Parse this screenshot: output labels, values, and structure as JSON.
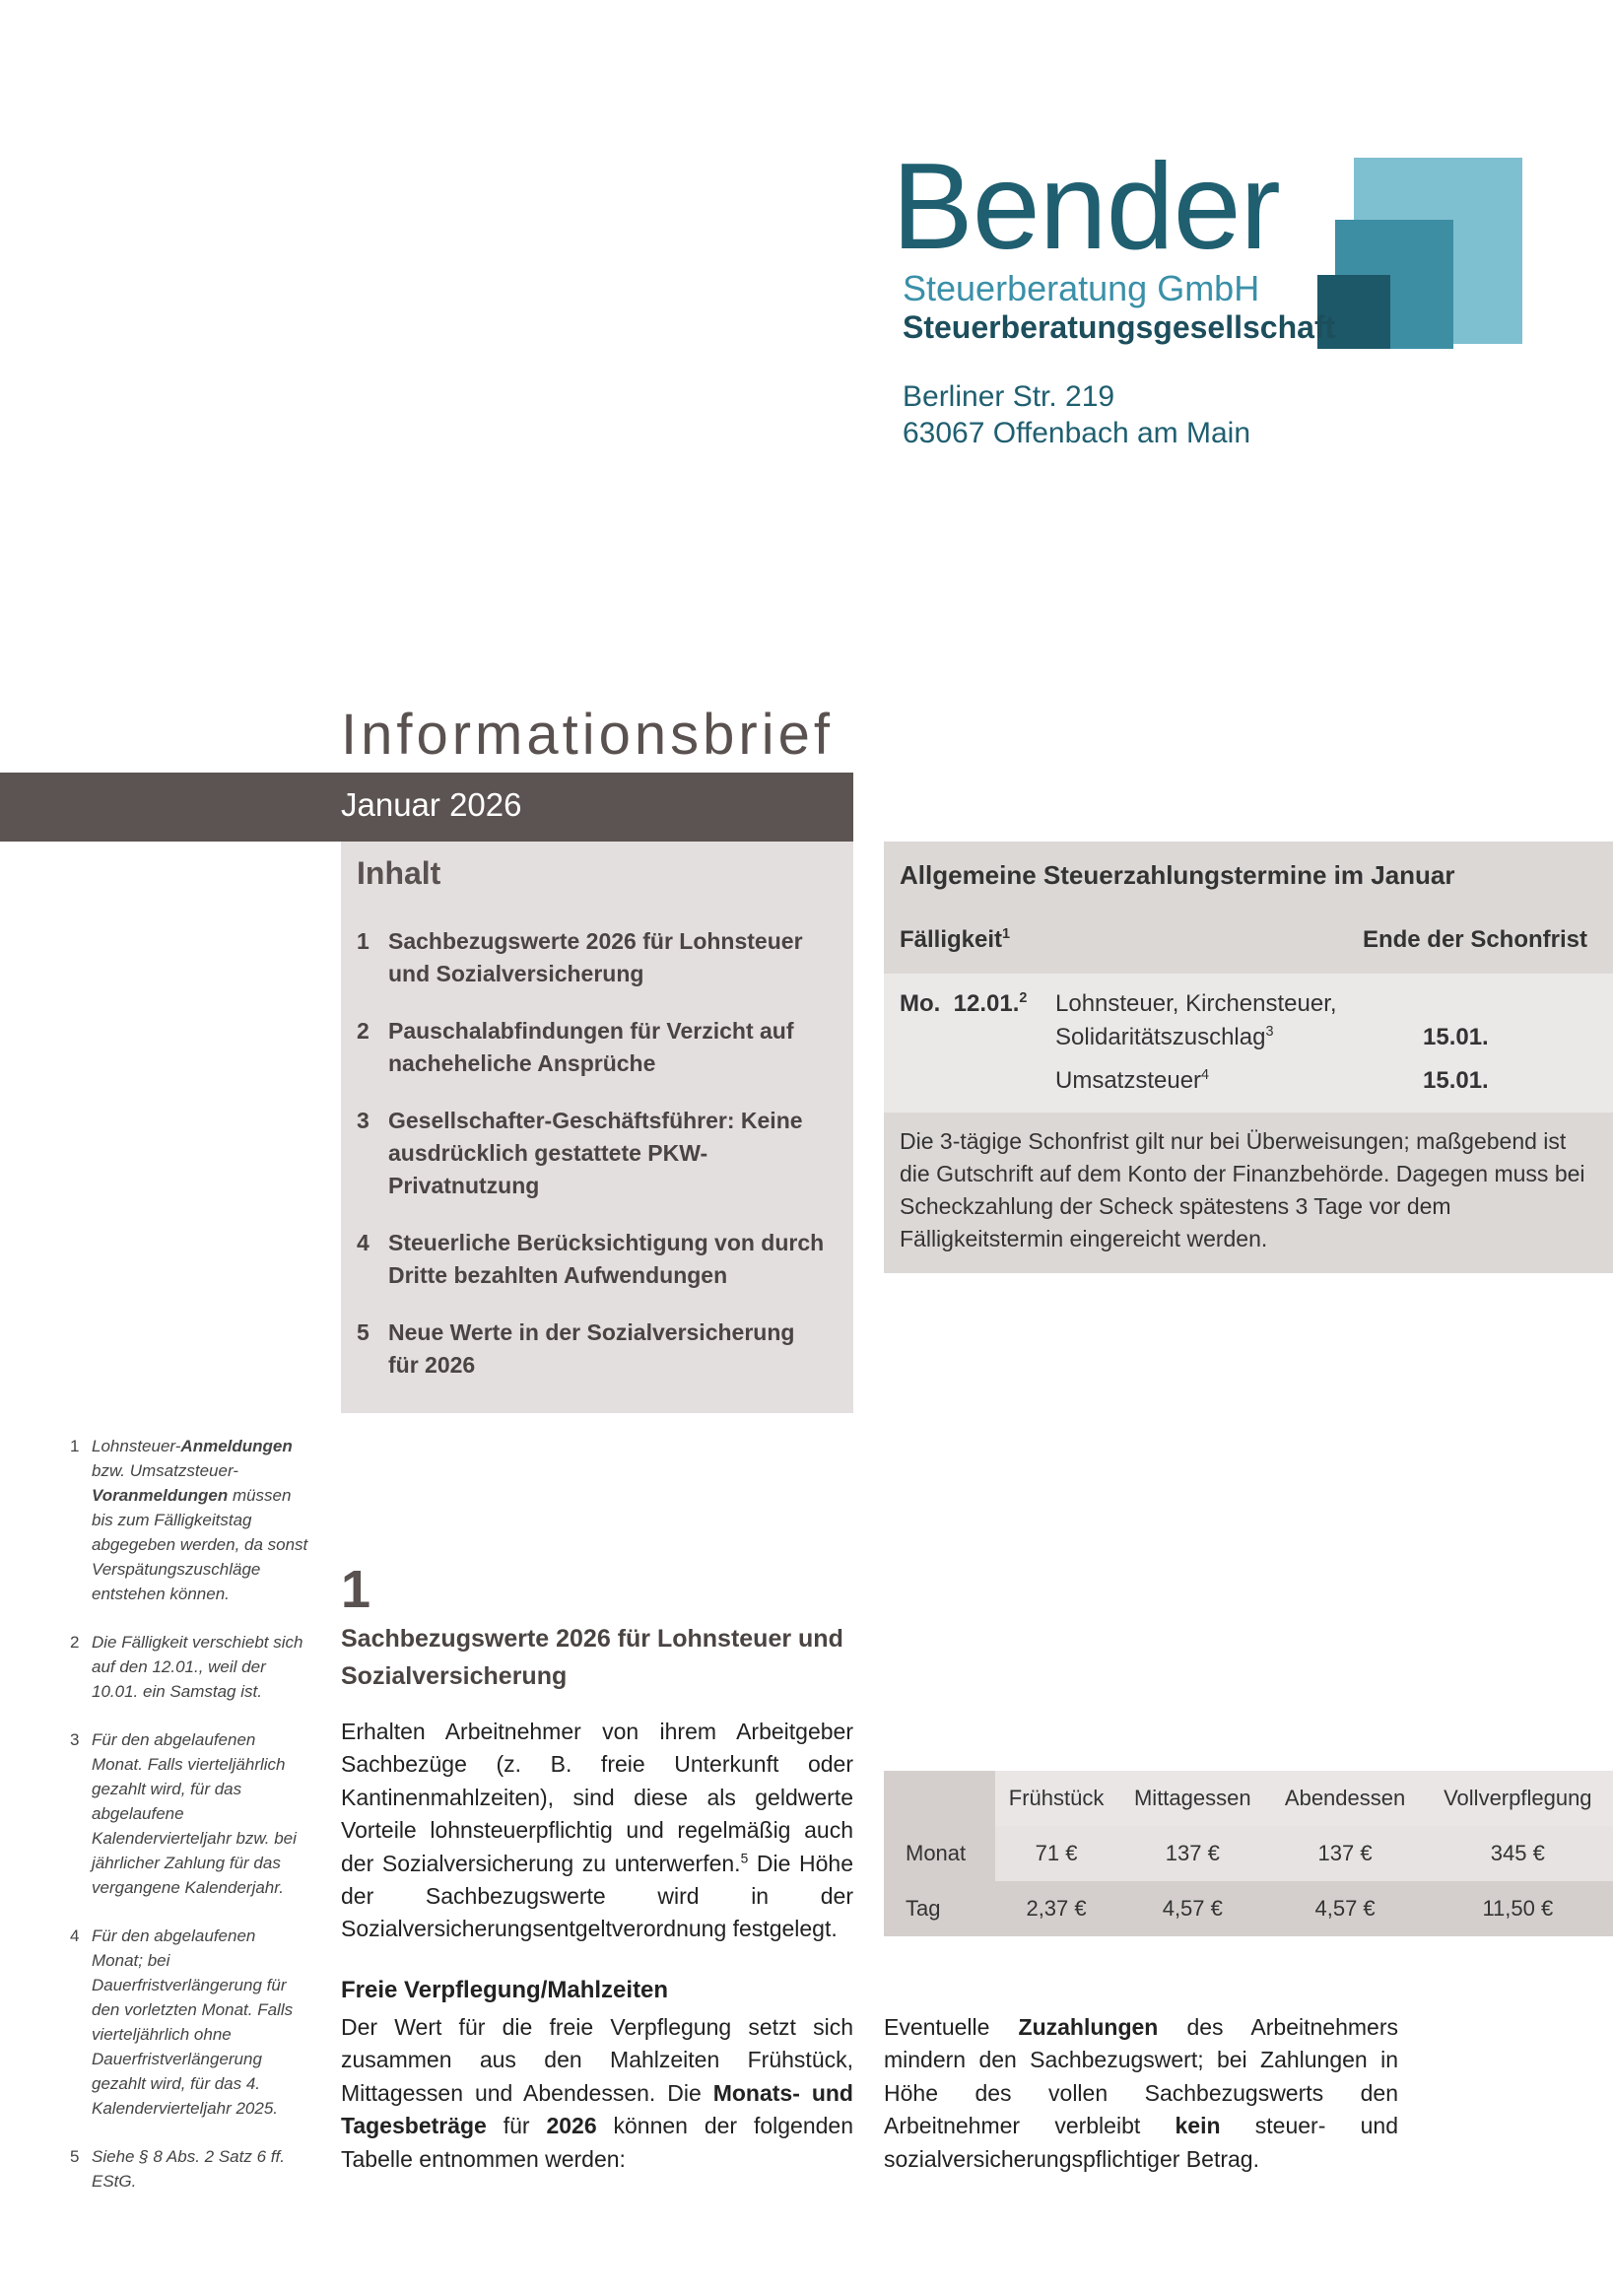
{
  "logo": {
    "name": "Bender",
    "line1": "Steuerberatung GmbH",
    "line2": "Steuerberatungsgesellschaft"
  },
  "address": {
    "street": "Berliner Str. 219",
    "city": "63067 Offenbach am Main"
  },
  "header": {
    "title": "Informationsbrief",
    "issue": "Januar 2026"
  },
  "contents": {
    "heading": "Inhalt",
    "items": [
      {
        "number": 1,
        "text": "Sachbezugswerte 2026 für Lohnsteuer und Sozialversicherung"
      },
      {
        "number": 2,
        "text": "Pauschalabfindungen für Verzicht auf nacheheliche Ansprüche"
      },
      {
        "number": 3,
        "text": "Gesellschafter-Geschäftsführer: Keine ausdrücklich gestattete PKW-Privatnutzung"
      },
      {
        "number": 4,
        "text": "Steuerliche Berücksichtigung von durch Dritte bezahlten Aufwendungen"
      },
      {
        "number": 5,
        "text": "Neue Werte in der Sozialversicherung für 2026"
      }
    ]
  },
  "deadlines": {
    "title": "Allgemeine Steuerzahlungstermine im Januar",
    "col_due": "Fälligkeit",
    "col_due_note": "1",
    "col_end": "Ende der Schonfrist",
    "weekday": "Mo.",
    "date": "12.01.",
    "date_note": "2",
    "taxes": [
      {
        "name": "Lohnsteuer, Kirchensteuer,",
        "name2": "Solidaritätszuschlag",
        "note": "3",
        "end": "15.01."
      },
      {
        "name": "Umsatzsteuer",
        "note": "4",
        "end": "15.01."
      }
    ],
    "note": "Die 3-tägige Schonfrist gilt nur bei Überweisungen; maßgebend ist die Gutschrift auf dem Konto der Finanzbehörde. Dagegen muss bei Scheckzahlung der Scheck spätestens 3 Tage vor dem Fälligkeitstermin eingereicht werden."
  },
  "footnotes": [
    {
      "number": 1,
      "segments": [
        {
          "text": "Lohnsteuer-"
        },
        {
          "text": "Anmeldungen",
          "style": "bold"
        },
        {
          "text": " bzw. Umsatzsteuer-"
        },
        {
          "text": "Voranmeldungen",
          "style": "bold"
        },
        {
          "text": " müssen bis zum Fälligkeitstag abgegeben werden, da sonst Verspätungszuschläge entstehen können."
        }
      ]
    },
    {
      "number": 2,
      "segments": [
        {
          "text": "Die Fälligkeit verschiebt sich auf den 12.01., weil der 10.01. ein Samstag ist."
        }
      ]
    },
    {
      "number": 3,
      "segments": [
        {
          "text": "Für den abgelaufenen Monat. Falls vierteljährlich gezahlt wird, für das abgelaufene Kalendervierteljahr bzw. bei jährlicher Zahlung für das vergangene Kalenderjahr."
        }
      ]
    },
    {
      "number": 4,
      "segments": [
        {
          "text": "Für den abgelaufenen Monat; bei Dauerfristverlängerung für den vorletzten Monat. Falls vierteljährlich ohne Dauerfristverlängerung gezahlt wird, für das 4. Kalendervierteljahr 2025."
        }
      ]
    },
    {
      "number": 5,
      "segments": [
        {
          "text": "Siehe § 8 Abs. 2 Satz 6 ff. EStG."
        }
      ]
    }
  ],
  "section": {
    "number": 1,
    "title": "Sachbezugswerte 2026 für Lohnsteuer und Sozialversicherung",
    "intro": [
      {
        "text": "Erhalten Arbeitnehmer von ihrem Arbeitgeber Sachbezüge (z. B. freie Unterkunft oder Kantinenmahlzeiten), sind diese als geldwerte Vorteile lohnsteuerpflichtig und regelmäßig auch der Sozialversicherung zu unterwerfen."
      },
      {
        "text": "5",
        "style": "sup"
      },
      {
        "text": " Die Höhe der Sachbezugswerte wird in der Sozialversicherungsentgeltverordnung festgelegt."
      }
    ],
    "subheading": "Freie Verpflegung/Mahlzeiten",
    "paragraph": [
      {
        "text": "Der Wert für die freie Verpflegung setzt sich zusammen aus den Mahlzeiten Frühstück, Mittagessen und Abendessen. Die "
      },
      {
        "text": "Monats- und Tagesbeträge",
        "style": "bold"
      },
      {
        "text": " für "
      },
      {
        "text": "2026",
        "style": "bold"
      },
      {
        "text": " können der folgenden Tabelle entnommen werden:"
      }
    ]
  },
  "table": {
    "columns": [
      "Frühstück",
      "Mittagessen",
      "Abendessen",
      "Vollverpflegung"
    ],
    "rows": [
      {
        "label": "Monat",
        "cells": [
          "71 €",
          "137 €",
          "137 €",
          "345 €"
        ]
      },
      {
        "label": "Tag",
        "cells": [
          "2,37 €",
          "4,57 €",
          "4,57 €",
          "11,50 €"
        ]
      }
    ]
  },
  "closing": [
    {
      "text": "Eventuelle "
    },
    {
      "text": "Zuzahlungen",
      "style": "bold"
    },
    {
      "text": " des Arbeitnehmers mindern den Sachbezugswert; bei Zahlungen in Höhe des vollen Sachbezugswerts den Arbeitnehmer verbleibt "
    },
    {
      "text": "kein",
      "style": "bold"
    },
    {
      "text": " steuer- und sozialversicherungspflichtiger Betrag."
    }
  ]
}
